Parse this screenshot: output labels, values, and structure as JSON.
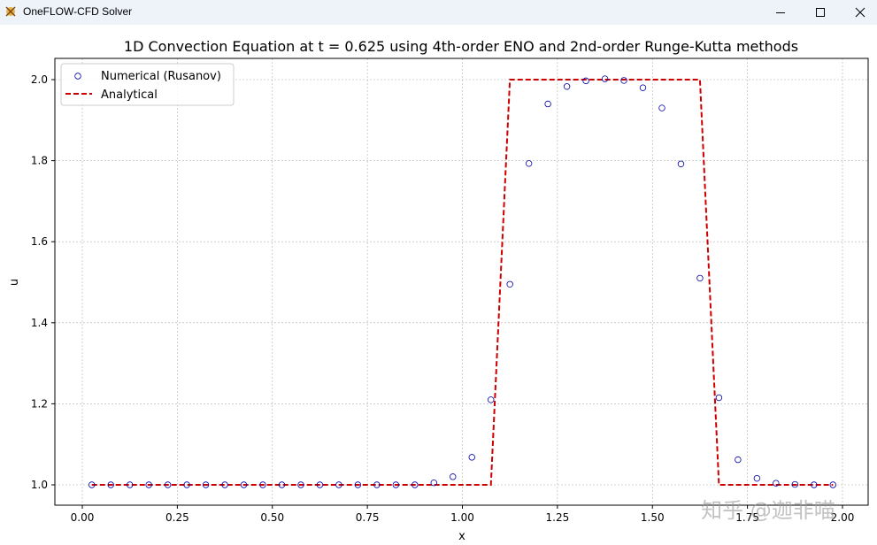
{
  "window": {
    "title": "OneFLOW-CFD Solver",
    "controls": [
      "minimize",
      "maximize",
      "close"
    ]
  },
  "watermark": "知乎 @迦非喵",
  "chart_data": {
    "type": "line",
    "title": "1D Convection Equation at t = 0.625 using 4th-order ENO and 2nd-order Runge-Kutta methods",
    "xlabel": "x",
    "ylabel": "u",
    "xlim": [
      -0.075,
      2.075
    ],
    "ylim": [
      0.95,
      2.05
    ],
    "xticks": [
      "0.00",
      "0.25",
      "0.50",
      "0.75",
      "1.00",
      "1.25",
      "1.50",
      "1.75",
      "2.00"
    ],
    "yticks": [
      "1.0",
      "1.2",
      "1.4",
      "1.6",
      "1.8",
      "2.0"
    ],
    "grid": true,
    "legend_position": "upper left",
    "series": [
      {
        "name": "Numerical (Rusanov)",
        "style": "scatter-open-circle",
        "color": "#0000aa",
        "x": [
          0.025,
          0.075,
          0.125,
          0.175,
          0.225,
          0.275,
          0.325,
          0.375,
          0.425,
          0.475,
          0.525,
          0.575,
          0.625,
          0.675,
          0.725,
          0.775,
          0.825,
          0.875,
          0.925,
          0.975,
          1.025,
          1.075,
          1.125,
          1.175,
          1.225,
          1.275,
          1.325,
          1.375,
          1.425,
          1.475,
          1.525,
          1.575,
          1.625,
          1.675,
          1.725,
          1.775,
          1.825,
          1.875,
          1.925,
          1.975
        ],
        "values": [
          1.0,
          1.0,
          1.0,
          1.0,
          1.0,
          1.0,
          1.0,
          1.0,
          1.0,
          1.0,
          1.0,
          1.0,
          1.0,
          1.0,
          1.0,
          1.0,
          1.0,
          1.0,
          1.005,
          1.02,
          1.068,
          1.21,
          1.495,
          1.793,
          1.94,
          1.983,
          1.997,
          2.002,
          1.998,
          1.98,
          1.93,
          1.792,
          1.51,
          1.215,
          1.062,
          1.016,
          1.004,
          1.001,
          1.0,
          1.0
        ]
      },
      {
        "name": "Analytical",
        "style": "dashed-line",
        "color": "#cc0000",
        "x": [
          0.025,
          1.075,
          1.125,
          1.625,
          1.675,
          1.975
        ],
        "values": [
          1.0,
          1.0,
          2.0,
          2.0,
          1.0,
          1.0
        ]
      }
    ]
  }
}
